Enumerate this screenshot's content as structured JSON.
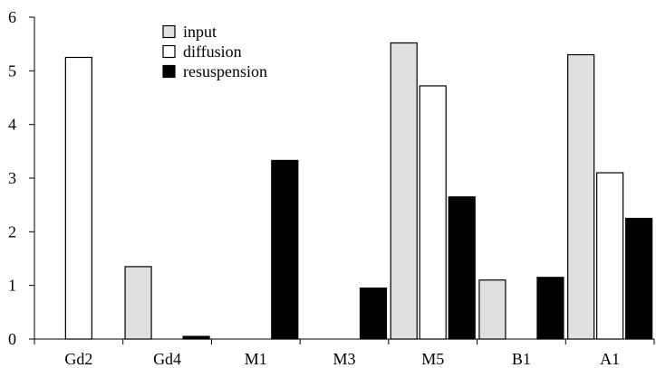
{
  "chart_data": {
    "type": "bar",
    "categories": [
      "Gd2",
      "Gd4",
      "M1",
      "M3",
      "M5",
      "B1",
      "A1"
    ],
    "series": [
      {
        "name": "input",
        "color": "#e0e0e0",
        "values": [
          0,
          1.35,
          0,
          0,
          5.52,
          1.1,
          5.3
        ]
      },
      {
        "name": "diffusion",
        "color": "#ffffff",
        "values": [
          5.25,
          0,
          0,
          0,
          4.72,
          0,
          3.1
        ]
      },
      {
        "name": "resuspension",
        "color": "#000000",
        "values": [
          0,
          0.05,
          3.33,
          0.95,
          2.65,
          1.15,
          2.25
        ]
      }
    ],
    "ylim": [
      0,
      6
    ],
    "yticks": [
      0,
      1,
      2,
      3,
      4,
      5,
      6
    ],
    "grid": false,
    "legend_position": "top-center"
  }
}
